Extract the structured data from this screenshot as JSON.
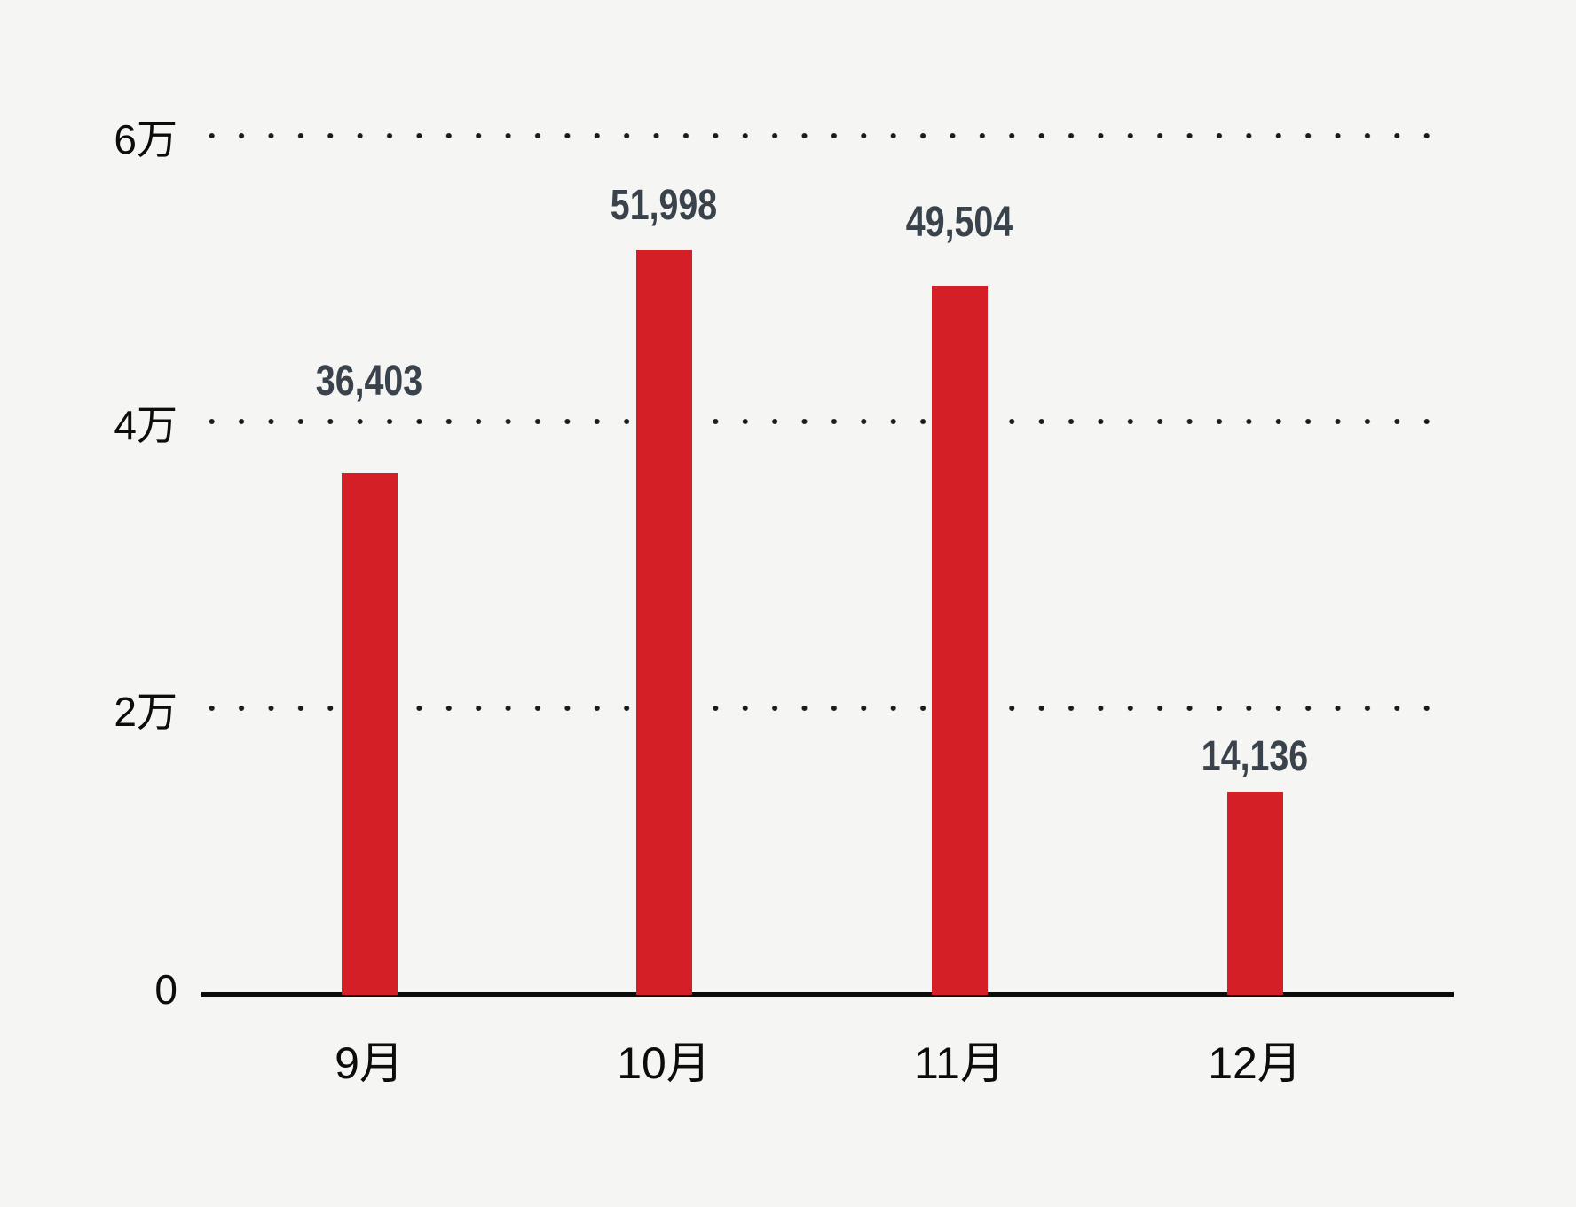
{
  "chart_data": {
    "type": "bar",
    "title": "",
    "xlabel": "",
    "ylabel": "",
    "categories": [
      "9月",
      "10月",
      "11月",
      "12月"
    ],
    "values": [
      36403,
      51998,
      49504,
      14136
    ],
    "value_labels": [
      "36,403",
      "51,998",
      "49,504",
      "14,136"
    ],
    "y_ticks": [
      {
        "value": 0,
        "label": "0"
      },
      {
        "value": 20000,
        "label": "2万"
      },
      {
        "value": 40000,
        "label": "4万"
      },
      {
        "value": 60000,
        "label": "6万"
      }
    ],
    "ylim": [
      0,
      60000
    ],
    "grid": "horizontal-dotted",
    "legend": "none",
    "colors": {
      "background": "#f5f5f3",
      "bar": "#d51f26",
      "value_label": "#3a434c",
      "axis_text": "#0c0c0c",
      "axis_line": "#0c0c0c",
      "grid_dots": "#1b1b1b"
    }
  }
}
